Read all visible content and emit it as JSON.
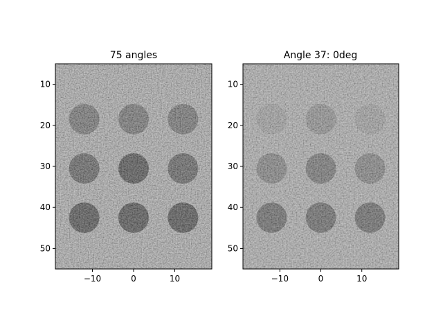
{
  "chart_data": [
    {
      "type": "heatmap",
      "title": "75 angles",
      "colormap": "gray",
      "xlim": [
        -19,
        19
      ],
      "ylim": [
        55,
        5
      ],
      "xticks": [
        -10,
        0,
        10
      ],
      "xtick_labels": [
        "−10",
        "0",
        "10"
      ],
      "yticks": [
        10,
        20,
        30,
        40,
        50
      ],
      "ytick_labels": [
        "10",
        "20",
        "30",
        "40",
        "50"
      ],
      "background_level": 0.55,
      "disk_radius": 3.7,
      "disks": [
        {
          "x": -12,
          "y": 18.5,
          "level": 0.22
        },
        {
          "x": 0,
          "y": 18.5,
          "level": 0.22
        },
        {
          "x": 12,
          "y": 18.5,
          "level": 0.22
        },
        {
          "x": -12,
          "y": 30.5,
          "level": 0.12
        },
        {
          "x": 0,
          "y": 30.5,
          "level": 0.02
        },
        {
          "x": 12,
          "y": 30.5,
          "level": 0.12
        },
        {
          "x": -12,
          "y": 42.5,
          "level": 0.02
        },
        {
          "x": 0,
          "y": 42.5,
          "level": 0.02
        },
        {
          "x": 12,
          "y": 42.5,
          "level": 0.02
        }
      ]
    },
    {
      "type": "heatmap",
      "title": "Angle 37: 0deg",
      "colormap": "gray",
      "xlim": [
        -19,
        19
      ],
      "ylim": [
        55,
        5
      ],
      "xticks": [
        -10,
        0,
        10
      ],
      "xtick_labels": [
        "−10",
        "0",
        "10"
      ],
      "yticks": [
        10,
        20,
        30,
        40,
        50
      ],
      "ytick_labels": [
        "10",
        "20",
        "30",
        "40",
        "50"
      ],
      "background_level": 0.58,
      "disk_radius": 3.7,
      "disks": [
        {
          "x": -12,
          "y": 18.5,
          "level": 0.5
        },
        {
          "x": 0,
          "y": 18.5,
          "level": 0.42
        },
        {
          "x": 12,
          "y": 18.5,
          "level": 0.5
        },
        {
          "x": -12,
          "y": 30.5,
          "level": 0.35
        },
        {
          "x": 0,
          "y": 30.5,
          "level": 0.28
        },
        {
          "x": 12,
          "y": 30.5,
          "level": 0.35
        },
        {
          "x": -12,
          "y": 42.5,
          "level": 0.22
        },
        {
          "x": 0,
          "y": 42.5,
          "level": 0.22
        },
        {
          "x": 12,
          "y": 42.5,
          "level": 0.22
        }
      ]
    }
  ]
}
